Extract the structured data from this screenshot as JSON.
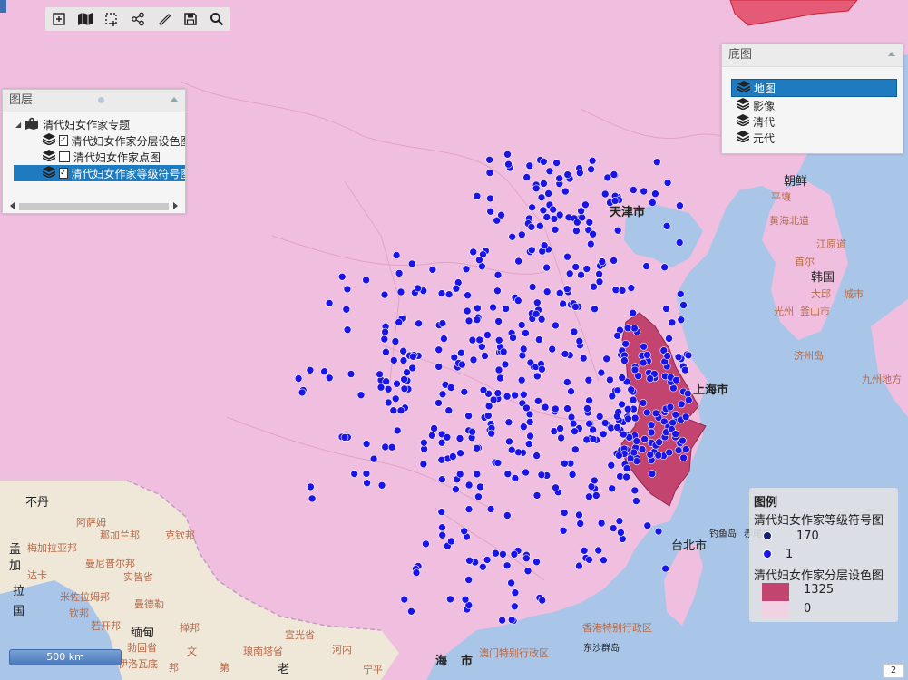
{
  "toolbar": {
    "tools": [
      "zoom-in-icon",
      "map-view-icon",
      "select-area-icon",
      "share-icon",
      "measure-icon",
      "save-icon",
      "search-icon"
    ]
  },
  "layers_panel": {
    "title": "图层",
    "root": "清代妇女作家专题",
    "layers": [
      {
        "label": "清代妇女作家分层设色图",
        "checked": true,
        "selected": false
      },
      {
        "label": "清代妇女作家点图",
        "checked": false,
        "selected": false
      },
      {
        "label": "清代妇女作家等级符号图",
        "checked": true,
        "selected": true
      }
    ]
  },
  "basemap_panel": {
    "title": "底图",
    "items": [
      {
        "label": "地图",
        "selected": true
      },
      {
        "label": "影像",
        "selected": false
      },
      {
        "label": "清代",
        "selected": false
      },
      {
        "label": "元代",
        "selected": false
      }
    ]
  },
  "legend": {
    "title": "图例",
    "symbol_layer": "清代妇女作家等级符号图",
    "symbol_max": "170",
    "symbol_min": "1",
    "choropleth_layer": "清代妇女作家分层设色图",
    "choropleth_max": "1325",
    "choropleth_min": "0",
    "colors": {
      "high": "#c2446f",
      "low": "#f0d2e4",
      "dot": "#1a14e6"
    }
  },
  "scale": {
    "label": "500 km"
  },
  "page_number": "2",
  "map_labels": {
    "tianjin": "天津市",
    "shanghai": "上海市",
    "chaoxian": "朝鲜",
    "pingrang": "平壤",
    "huanghai_north": "黄海北道",
    "jiangyuan": "江原道",
    "shouer": "首尔",
    "hanguo": "韩国",
    "daqiu": "大邱",
    "chengshi": "城市",
    "guangzhou_kr": "光州",
    "fushi": "釜山市",
    "jiyuan": "济州岛",
    "jiuzhou": "九州地方",
    "taibei": "台北市",
    "diaoyu": "钓鱼岛",
    "chiwei": "赤尾屿",
    "xianggang": "香港特别行政区",
    "aomen": "澳门特别行政区",
    "dongsha": "东沙群岛",
    "haikou_a": "海",
    "haikou_b": "市",
    "budan": "不丹",
    "asamu": "阿萨姆",
    "namu": "那加兰邦",
    "kelin": "克钦邦",
    "menjia": "孟",
    "jia": "加",
    "la": "拉",
    "guo": "国",
    "meghalaya": "梅加拉亚邦",
    "manipur": "曼尼普尔邦",
    "shigang": "实皆省",
    "daka": "达卡",
    "mizo": "米佐拉姆邦",
    "mandalay": "曼德勒",
    "qinban": "钦邦",
    "miandian": "缅甸",
    "changzhou": "掸邦",
    "laozhou": "老",
    "langshan": "琅南塔省",
    "hanoi": "河内",
    "ningping": "宁平",
    "xiangkuang": "若开邦",
    "baigu": "勃固省",
    "sucheng": "伊洛瓦底",
    "xingning": "宣光省",
    "wen": "文",
    "di": "第",
    "bangtian": "邦"
  }
}
